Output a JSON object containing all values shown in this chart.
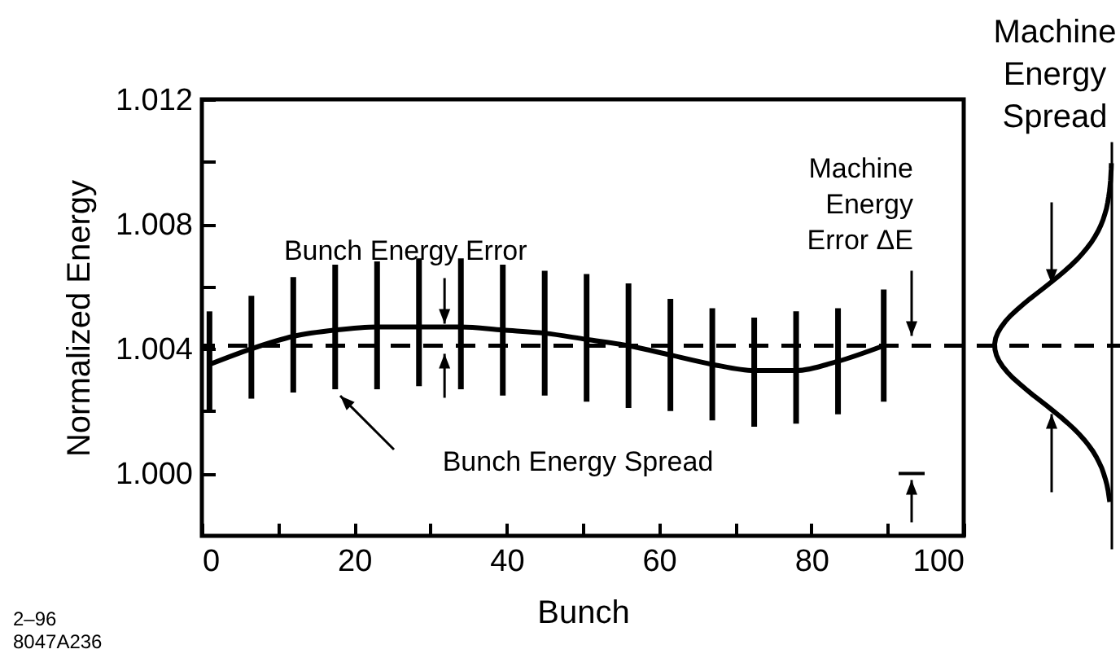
{
  "chart_data": {
    "type": "line",
    "xlabel": "Bunch",
    "ylabel": "Normalized Energy",
    "x": [
      1,
      6.5,
      12,
      17.5,
      23,
      28.5,
      34,
      39.5,
      45,
      50.5,
      56,
      61.5,
      67,
      72.5,
      78,
      83.5,
      89.5
    ],
    "series": [
      {
        "color": "#000000",
        "values": [
          1.0035,
          1.004,
          1.0044,
          1.0046,
          1.0047,
          1.0047,
          1.0047,
          1.0046,
          1.0045,
          1.0043,
          1.0041,
          1.0038,
          1.0035,
          1.0033,
          1.0033,
          1.0036,
          1.0041
        ],
        "errors": [
          [
            1.002,
            1.0052
          ],
          [
            1.0024,
            1.0057
          ],
          [
            1.0026,
            1.0063
          ],
          [
            1.0027,
            1.0067
          ],
          [
            1.0027,
            1.0068
          ],
          [
            1.0028,
            1.0069
          ],
          [
            1.0027,
            1.0069
          ],
          [
            1.0025,
            1.0067
          ],
          [
            1.0025,
            1.0065
          ],
          [
            1.0023,
            1.0064
          ],
          [
            1.0021,
            1.0061
          ],
          [
            1.002,
            1.0056
          ],
          [
            1.0017,
            1.0053
          ],
          [
            1.0015,
            1.005
          ],
          [
            1.0016,
            1.0052
          ],
          [
            1.0019,
            1.0053
          ],
          [
            1.0023,
            1.0059
          ]
        ]
      }
    ],
    "marker": "none",
    "line_style": "solid",
    "grid": false,
    "xlim": [
      0,
      100
    ],
    "xticks": [
      0,
      {
        "value": 10,
        "label": null
      },
      20,
      {
        "value": 30,
        "label": null
      },
      40,
      {
        "value": 50,
        "label": null
      },
      60,
      {
        "value": 70,
        "label": null
      },
      80,
      {
        "value": 90,
        "label": null
      },
      100
    ],
    "ylim": [
      0.998,
      1.012
    ],
    "yticks": [
      {
        "value": 1.0,
        "label": "1.000"
      },
      {
        "value": 1.002,
        "label": null
      },
      {
        "value": 1.004,
        "label": "1.004"
      },
      {
        "value": 1.006,
        "label": null
      },
      {
        "value": 1.008,
        "label": "1.008"
      },
      {
        "value": 1.01,
        "label": null
      },
      {
        "value": 1.012,
        "label": "1.012"
      }
    ],
    "ref_lines": [
      {
        "axis": "y",
        "value": 1.0041,
        "color": "#000000",
        "line_style": "dashed"
      }
    ],
    "annotations": [
      {
        "text": "Bunch Energy Error",
        "x": 31,
        "y": 1.0047
      },
      "Bunch Energy Spread",
      "Machine Energy Error ΔE",
      "Machine Energy Spread",
      "2–96",
      "8047A236"
    ]
  }
}
